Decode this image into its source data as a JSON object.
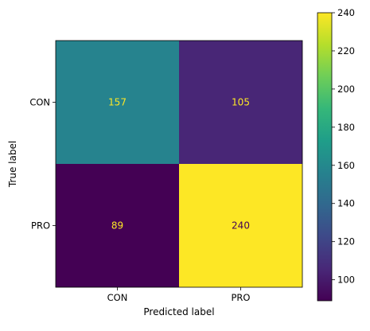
{
  "chart_data": {
    "type": "heatmap",
    "title": "",
    "xlabel": "Predicted label",
    "ylabel": "True label",
    "x_categories": [
      "CON",
      "PRO"
    ],
    "y_categories": [
      "CON",
      "PRO"
    ],
    "matrix": [
      [
        157,
        105
      ],
      [
        89,
        240
      ]
    ],
    "cell_labels": [
      [
        "157",
        "105"
      ],
      [
        "89",
        "240"
      ]
    ],
    "colormap": "viridis",
    "colorbar": {
      "vmin": 89,
      "vmax": 240,
      "ticks": [
        100,
        120,
        140,
        160,
        180,
        200,
        220,
        240
      ],
      "tick_labels": [
        "100",
        "120",
        "140",
        "160",
        "180",
        "200",
        "220",
        "240"
      ]
    },
    "text_colors": {
      "on_dark": "#fde725",
      "on_light": "#440154"
    }
  }
}
